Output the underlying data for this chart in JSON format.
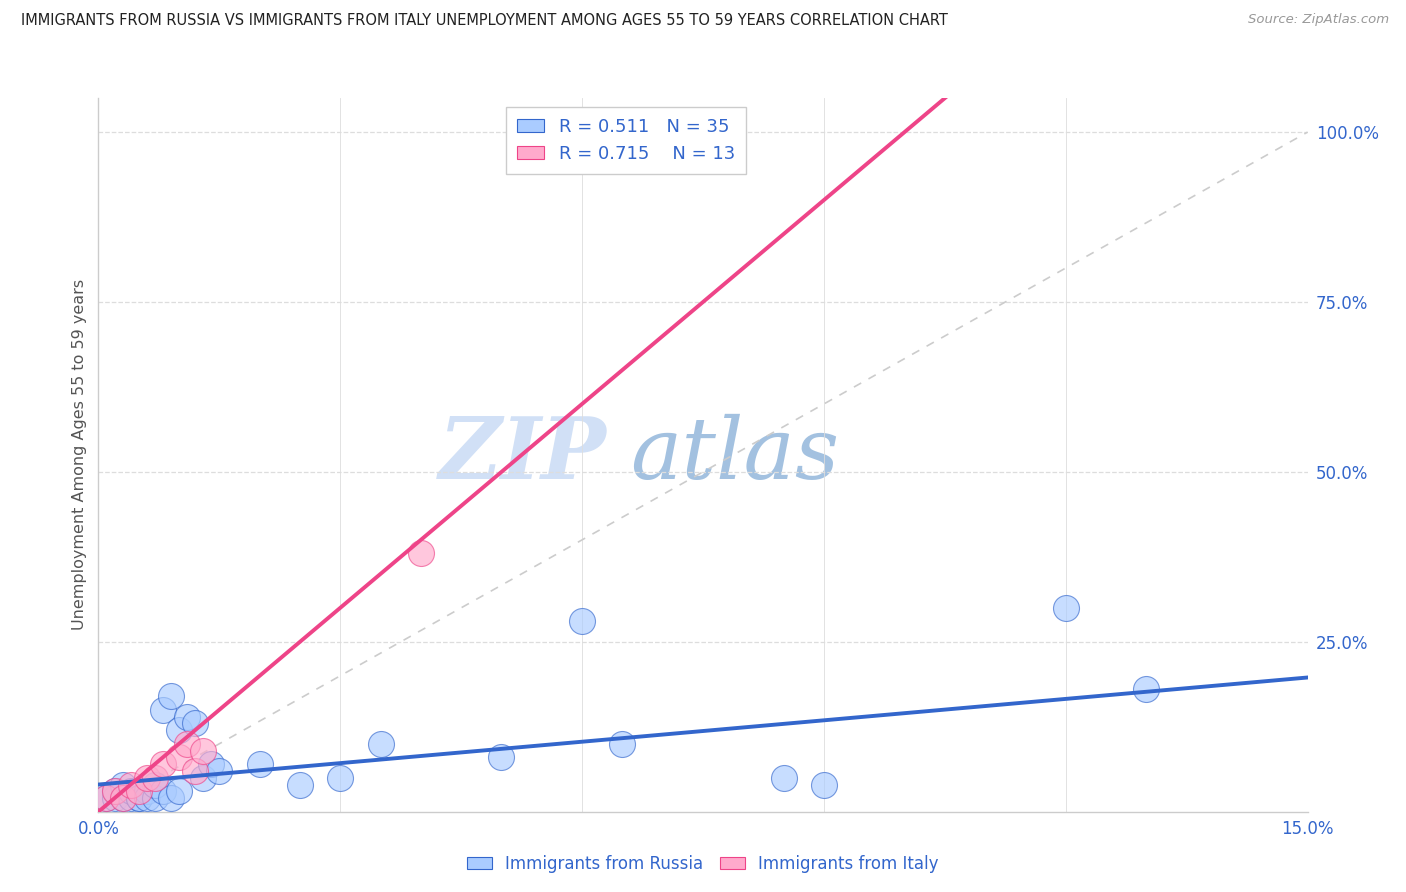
{
  "title": "IMMIGRANTS FROM RUSSIA VS IMMIGRANTS FROM ITALY UNEMPLOYMENT AMONG AGES 55 TO 59 YEARS CORRELATION CHART",
  "source": "Source: ZipAtlas.com",
  "ylabel_label": "Unemployment Among Ages 55 to 59 years",
  "xlim": [
    0.0,
    0.15
  ],
  "ylim": [
    0.0,
    1.05
  ],
  "y_ticks_right": [
    0.0,
    0.25,
    0.5,
    0.75,
    1.0
  ],
  "y_tick_labels_right": [
    "",
    "25.0%",
    "50.0%",
    "75.0%",
    "100.0%"
  ],
  "russia_R": 0.511,
  "russia_N": 35,
  "italy_R": 0.715,
  "italy_N": 13,
  "russia_color": "#aaccff",
  "russia_line_color": "#3366cc",
  "italy_color": "#ffaacc",
  "italy_line_color": "#ee4488",
  "diagonal_color": "#cccccc",
  "watermark_zip": "ZIP",
  "watermark_atlas": "atlas",
  "russia_x": [
    0.001,
    0.002,
    0.002,
    0.003,
    0.003,
    0.004,
    0.004,
    0.005,
    0.005,
    0.006,
    0.006,
    0.007,
    0.007,
    0.008,
    0.008,
    0.009,
    0.009,
    0.01,
    0.01,
    0.011,
    0.012,
    0.013,
    0.014,
    0.015,
    0.02,
    0.025,
    0.03,
    0.035,
    0.05,
    0.06,
    0.065,
    0.085,
    0.09,
    0.12,
    0.13
  ],
  "russia_y": [
    0.02,
    0.02,
    0.03,
    0.02,
    0.04,
    0.02,
    0.03,
    0.02,
    0.02,
    0.03,
    0.02,
    0.02,
    0.04,
    0.03,
    0.15,
    0.02,
    0.17,
    0.03,
    0.12,
    0.14,
    0.13,
    0.05,
    0.07,
    0.06,
    0.07,
    0.04,
    0.05,
    0.1,
    0.08,
    0.28,
    0.1,
    0.05,
    0.04,
    0.3,
    0.18
  ],
  "italy_x": [
    0.001,
    0.002,
    0.003,
    0.004,
    0.005,
    0.006,
    0.007,
    0.008,
    0.01,
    0.011,
    0.012,
    0.013,
    0.04
  ],
  "italy_y": [
    0.02,
    0.03,
    0.02,
    0.04,
    0.03,
    0.05,
    0.05,
    0.07,
    0.08,
    0.1,
    0.06,
    0.09,
    0.38
  ],
  "russia_slope": 1.05,
  "russia_intercept": 0.04,
  "italy_slope": 10.0,
  "italy_intercept": 0.0,
  "legend_text_color": "#3366cc",
  "title_color": "#222222",
  "axis_label_color": "#555555",
  "grid_color": "#dddddd",
  "spine_color": "#cccccc"
}
